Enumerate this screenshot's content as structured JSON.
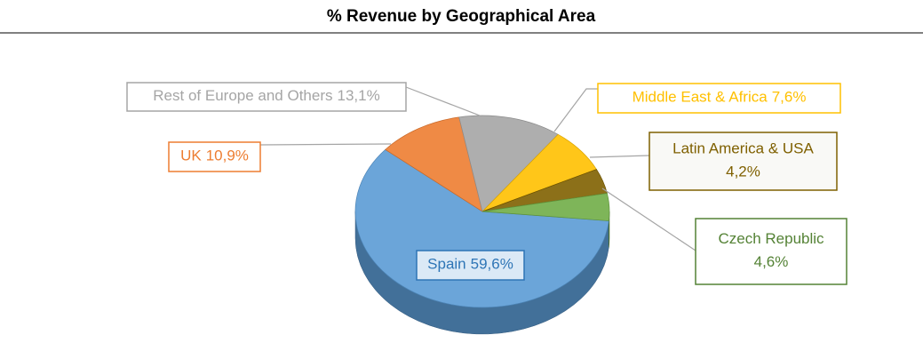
{
  "chart_data": {
    "type": "pie",
    "title": "% Revenue by Geographical Area",
    "categories": [
      "Spain",
      "UK",
      "Rest of Europe and Others",
      "Middle East & Africa",
      "Latin America & USA",
      "Czech Republic"
    ],
    "values": [
      59.6,
      10.9,
      13.1,
      7.6,
      4.2,
      4.6
    ],
    "value_labels": [
      "59,6%",
      "10,9%",
      "13,1%",
      "7,6%",
      "4,2%",
      "4,6%"
    ],
    "colors": [
      "#5b9bd5",
      "#ed7d31",
      "#a5a5a5",
      "#ffc000",
      "#7f6000",
      "#70ad47"
    ]
  }
}
